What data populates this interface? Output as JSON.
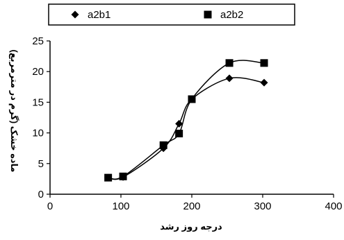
{
  "chart_data": {
    "type": "scatter",
    "title": "",
    "xlabel": "درجه روز رشد",
    "ylabel": "ماده خشک (گرم در مترمربع)",
    "xlim": [
      0,
      400
    ],
    "ylim": [
      0,
      25
    ],
    "x_ticks": [
      0,
      100,
      200,
      300,
      400
    ],
    "y_ticks": [
      0,
      5,
      10,
      15,
      20,
      25
    ],
    "grid": false,
    "legend_position": "top",
    "trendlines": true,
    "series": [
      {
        "name": "a2b1",
        "marker": "diamond",
        "color": "#000000",
        "points": [
          {
            "x": 82,
            "y": 2.7
          },
          {
            "x": 103,
            "y": 2.8
          },
          {
            "x": 160,
            "y": 7.5
          },
          {
            "x": 182,
            "y": 11.5
          },
          {
            "x": 200,
            "y": 15.5
          },
          {
            "x": 253,
            "y": 18.9
          },
          {
            "x": 302,
            "y": 18.2
          }
        ]
      },
      {
        "name": "a2b2",
        "marker": "square",
        "color": "#000000",
        "points": [
          {
            "x": 82,
            "y": 2.7
          },
          {
            "x": 103,
            "y": 2.9
          },
          {
            "x": 160,
            "y": 8.0
          },
          {
            "x": 182,
            "y": 9.9
          },
          {
            "x": 200,
            "y": 15.5
          },
          {
            "x": 253,
            "y": 21.4
          },
          {
            "x": 302,
            "y": 21.4
          }
        ]
      }
    ]
  }
}
